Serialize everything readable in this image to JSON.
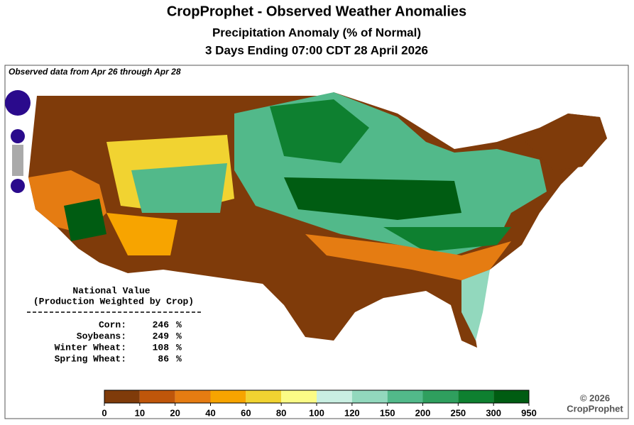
{
  "header": {
    "title": "CropProphet - Observed Weather Anomalies",
    "subtitle": "Precipitation Anomaly (% of Normal)",
    "period": "3 Days Ending 07:00 CDT 28 April 2026"
  },
  "map": {
    "note": "Observed data from Apr 26 through Apr 28"
  },
  "national": {
    "title": "National Value",
    "subtitle": "(Production Weighted by Crop)",
    "rows": [
      {
        "name": "Corn:",
        "value": 246,
        "unit": "%"
      },
      {
        "name": "Soybeans:",
        "value": 249,
        "unit": "%"
      },
      {
        "name": "Winter Wheat:",
        "value": 108,
        "unit": "%"
      },
      {
        "name": "Spring Wheat:",
        "value": 86,
        "unit": "%"
      }
    ]
  },
  "legend": {
    "colors": [
      "#7f3b0a",
      "#bf560a",
      "#e57c12",
      "#f7a400",
      "#f1d331",
      "#fbfb86",
      "#c9efe2",
      "#92d8bd",
      "#52b98a",
      "#2f9f5e",
      "#0e8030",
      "#005c12"
    ],
    "ticks": [
      0,
      10,
      20,
      40,
      60,
      80,
      100,
      120,
      150,
      200,
      250,
      300,
      950
    ]
  },
  "footer": {
    "copyright": "© 2026",
    "brand": "CropProphet"
  }
}
